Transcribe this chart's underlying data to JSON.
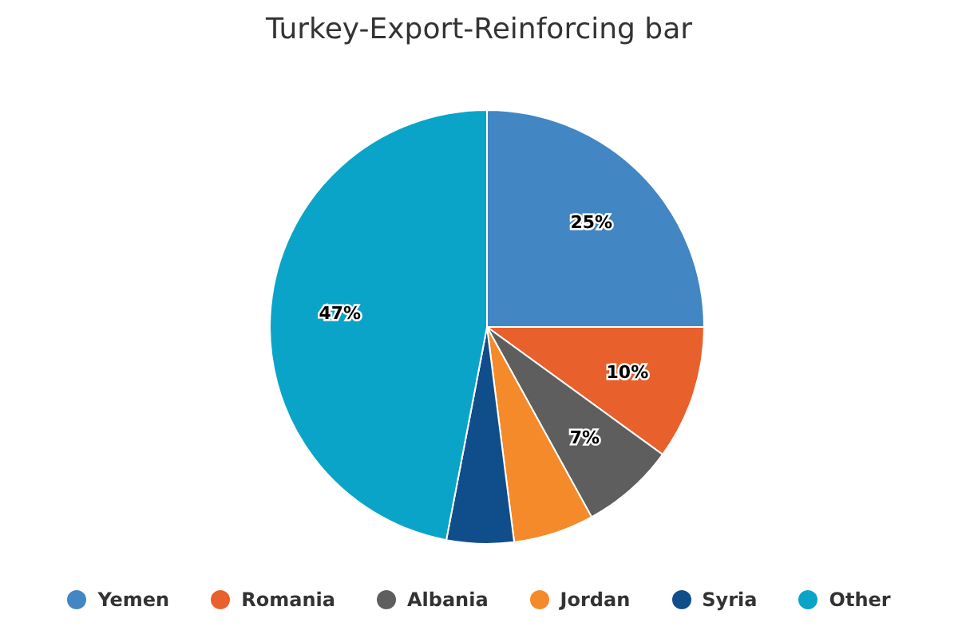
{
  "chart_data": {
    "type": "pie",
    "title": "Turkey-Export-Reinforcing bar",
    "categories": [
      "Yemen",
      "Romania",
      "Albania",
      "Jordan",
      "Syria",
      "Other"
    ],
    "values": [
      25,
      10,
      7,
      6,
      5,
      47
    ],
    "value_labels": [
      "25%",
      "10%",
      "7%",
      null,
      null,
      "47%"
    ],
    "colors": [
      "#4286c4",
      "#e8602c",
      "#5e5e5e",
      "#f58a2a",
      "#104e8b",
      "#0ba4c9"
    ],
    "legend": "bottom"
  }
}
